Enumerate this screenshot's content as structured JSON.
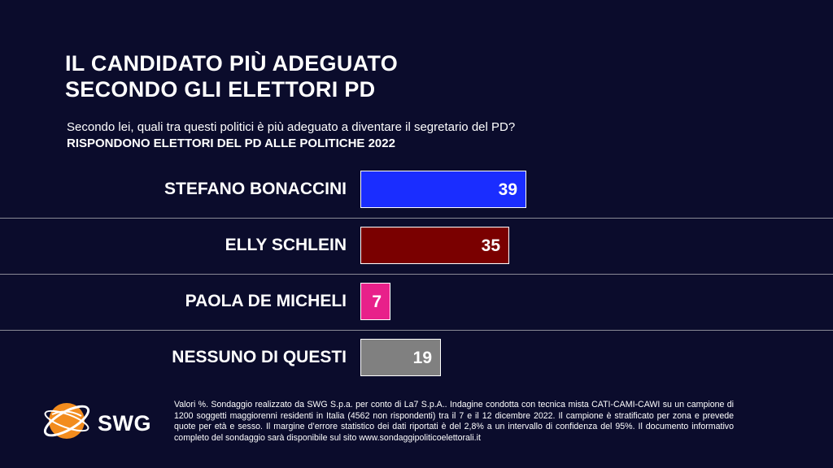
{
  "header": {
    "title_line1": "IL CANDIDATO PIÙ ADEGUATO",
    "title_line2": "SECONDO GLI ELETTORI PD",
    "question": "Secondo lei, quali tra questi politici è più adeguato a diventare il segretario del PD?",
    "subtitle": "RISPONDONO ELETTORI DEL PD ALLE POLITICHE 2022"
  },
  "chart_data": {
    "type": "bar",
    "orientation": "horizontal",
    "categories": [
      "STEFANO BONACCINI",
      "ELLY SCHLEIN",
      "PAOLA DE MICHELI",
      "NESSUNO DI QUESTI"
    ],
    "values": [
      39,
      35,
      7,
      19
    ],
    "colors": [
      "#1a2dff",
      "#7a0000",
      "#e8208a",
      "#808080"
    ],
    "title": "IL CANDIDATO PIÙ ADEGUATO SECONDO GLI ELETTORI PD",
    "xlabel": "",
    "ylabel": "",
    "xlim": [
      0,
      39
    ],
    "grid": false,
    "legend": "none"
  },
  "logo": {
    "brand": "SWG",
    "colors": {
      "orange": "#f28c1e",
      "white": "#ffffff"
    }
  },
  "footnote": "Valori %. Sondaggio realizzato da SWG S.p.a. per conto di La7 S.p.A.. Indagine condotta con tecnica mista CATI-CAMI-CAWI su un campione di 1200 soggetti maggiorenni residenti in Italia (4562 non rispondenti) tra il 7 e il 12 dicembre 2022. Il campione è stratificato per zona e prevede quote per età e sesso. Il margine d’errore statistico dei dati riportati è del 2,8% a un intervallo di confidenza del 95%. Il documento informativo completo del sondaggio sarà disponibile sul sito www.sondaggipoliticoelettorali.it"
}
